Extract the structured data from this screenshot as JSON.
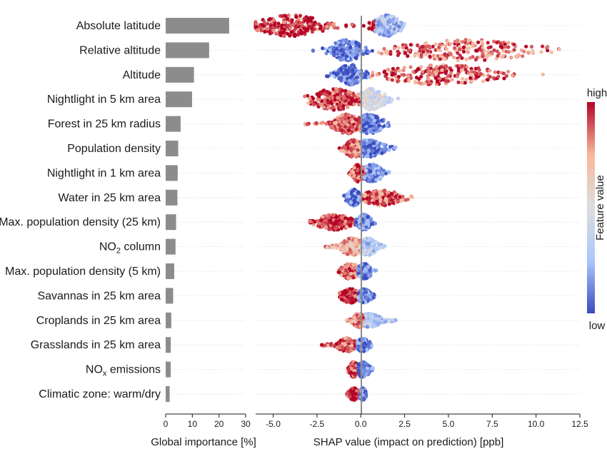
{
  "chart_data": [
    {
      "type": "bar",
      "orientation": "horizontal",
      "xlabel": "Global importance [%]",
      "xlim": [
        0,
        30
      ],
      "xticks": [
        "0",
        "10",
        "20",
        "30"
      ],
      "bar_color": "#8c8c8c",
      "categories": [
        "Absolute latitude",
        "Relative altitude",
        "Altitude",
        "Nightlight in 5 km area",
        "Forest in 25 km radius",
        "Population density",
        "Nightlight in 1 km area",
        "Water in 25 km area",
        "Max. population density (25 km)",
        "NO2 column",
        "Max. population density (5 km)",
        "Savannas in 25 km area",
        "Croplands in 25 km area",
        "Grasslands in 25 km area",
        "NOX emissions",
        "Climatic zone: warm/dry"
      ],
      "values": [
        23.8,
        16.3,
        10.6,
        9.9,
        5.6,
        4.7,
        4.5,
        4.4,
        3.9,
        3.7,
        3.2,
        2.8,
        2.1,
        1.9,
        1.9,
        1.5
      ]
    },
    {
      "type": "scatter",
      "subtype": "beeswarm",
      "xlabel": "SHAP value (impact on prediction) [ppb]",
      "xlim": [
        -6.0,
        12.5
      ],
      "xticks": [
        "-5.0",
        "-2.5",
        "0.0",
        "2.5",
        "5.0",
        "7.5",
        "10.0",
        "12.5"
      ],
      "zero_line": 0,
      "colorbar": {
        "label": "Feature value",
        "high": "high",
        "low": "low",
        "colors": [
          "#3b4cc0",
          "#aac7fd",
          "#dddddd",
          "#f7b89c",
          "#b40426"
        ]
      },
      "features": [
        {
          "min": -6.0,
          "max": 2.8,
          "left_mode": -4.0,
          "left_width": 1.5,
          "right_mode": 1.5,
          "right_width": 0.6,
          "split": 0.8,
          "left_color": 0.95,
          "right_color": 0.25,
          "peak": 1.0
        },
        {
          "min": -2.8,
          "max": 11.8,
          "left_mode": -0.8,
          "left_width": 0.7,
          "right_mode": 6.0,
          "right_width": 3.0,
          "split": 0.8,
          "left_color": 0.1,
          "right_color": 0.85,
          "peak": 1.0
        },
        {
          "min": -2.4,
          "max": 10.6,
          "left_mode": -0.6,
          "left_width": 0.6,
          "right_mode": 4.5,
          "right_width": 2.5,
          "split": 0.5,
          "left_color": 0.1,
          "right_color": 0.9,
          "peak": 0.95
        },
        {
          "min": -3.2,
          "max": 2.3,
          "left_mode": -1.5,
          "left_width": 1.0,
          "right_mode": 0.6,
          "right_width": 0.6,
          "split": 0.0,
          "left_color": 0.92,
          "right_color": 0.45,
          "peak": 1.0
        },
        {
          "min": -3.2,
          "max": 1.8,
          "left_mode": -0.8,
          "left_width": 0.6,
          "right_mode": 0.5,
          "right_width": 0.6,
          "split": 0.0,
          "left_color": 0.85,
          "right_color": 0.1,
          "peak": 0.9
        },
        {
          "min": -1.3,
          "max": 2.0,
          "left_mode": -0.4,
          "left_width": 0.4,
          "right_mode": 0.4,
          "right_width": 0.7,
          "split": 0.0,
          "left_color": 0.85,
          "right_color": 0.1,
          "peak": 0.8
        },
        {
          "min": -0.7,
          "max": 1.7,
          "left_mode": -0.2,
          "left_width": 0.2,
          "right_mode": 0.6,
          "right_width": 0.5,
          "split": 0.2,
          "left_color": 0.9,
          "right_color": 0.15,
          "peak": 0.8
        },
        {
          "min": -1.0,
          "max": 3.0,
          "left_mode": -0.4,
          "left_width": 0.3,
          "right_mode": 1.2,
          "right_width": 0.8,
          "split": 0.0,
          "left_color": 0.1,
          "right_color": 0.85,
          "peak": 0.75
        },
        {
          "min": -2.9,
          "max": 1.0,
          "left_mode": -1.5,
          "left_width": 0.8,
          "right_mode": 0.2,
          "right_width": 0.3,
          "split": -0.3,
          "left_color": 0.92,
          "right_color": 0.15,
          "peak": 0.7
        },
        {
          "min": -2.1,
          "max": 1.4,
          "left_mode": -0.5,
          "left_width": 0.5,
          "right_mode": 0.4,
          "right_width": 0.4,
          "split": 0.0,
          "left_color": 0.75,
          "right_color": 0.3,
          "peak": 0.8
        },
        {
          "min": -1.3,
          "max": 0.9,
          "left_mode": -0.6,
          "left_width": 0.4,
          "right_mode": 0.2,
          "right_width": 0.3,
          "split": -0.2,
          "left_color": 0.88,
          "right_color": 0.1,
          "peak": 0.7
        },
        {
          "min": -1.2,
          "max": 0.8,
          "left_mode": -0.6,
          "left_width": 0.4,
          "right_mode": 0.2,
          "right_width": 0.3,
          "split": -0.2,
          "left_color": 0.92,
          "right_color": 0.1,
          "peak": 0.65
        },
        {
          "min": -0.8,
          "max": 2.3,
          "left_mode": -0.1,
          "left_width": 0.3,
          "right_mode": 0.5,
          "right_width": 0.5,
          "split": 0.2,
          "left_color": 0.8,
          "right_color": 0.3,
          "peak": 0.6
        },
        {
          "min": -2.3,
          "max": 0.7,
          "left_mode": -0.8,
          "left_width": 0.4,
          "right_mode": 0.1,
          "right_width": 0.3,
          "split": -0.3,
          "left_color": 0.9,
          "right_color": 0.1,
          "peak": 0.6
        },
        {
          "min": -0.8,
          "max": 0.7,
          "left_mode": -0.4,
          "left_width": 0.2,
          "right_mode": 0.1,
          "right_width": 0.3,
          "split": -0.2,
          "left_color": 0.92,
          "right_color": 0.1,
          "peak": 0.7
        },
        {
          "min": -0.8,
          "max": 0.3,
          "left_mode": -0.4,
          "left_width": 0.2,
          "right_mode": 0.1,
          "right_width": 0.15,
          "split": -0.1,
          "left_color": 0.95,
          "right_color": 0.1,
          "peak": 0.55
        }
      ]
    }
  ]
}
